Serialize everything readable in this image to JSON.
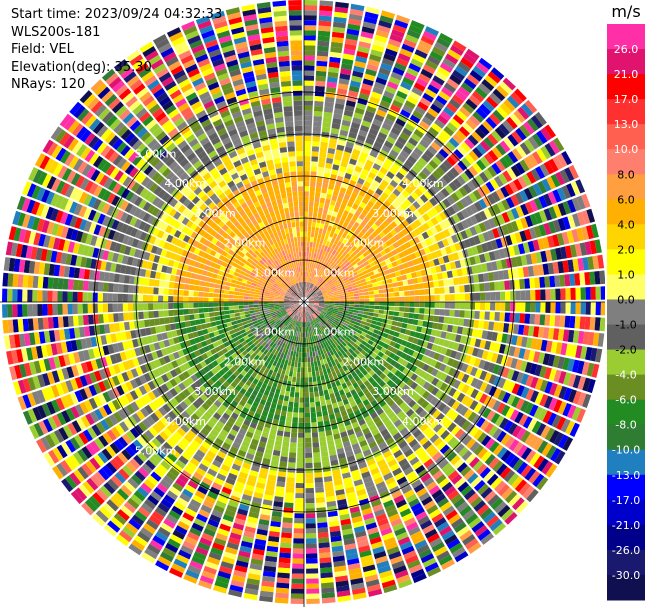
{
  "info": {
    "start_time": "Start time: 2023/09/24 04:32:33",
    "instrument": "WLS200s-181",
    "field": "Field: VEL",
    "elevation": "Elevation(deg): 35.30",
    "nrays": "NRays: 120"
  },
  "colorbar": {
    "unit": "m/s",
    "ticks": [
      "26.0",
      "21.0",
      "17.0",
      "13.0",
      "10.0",
      "8.0",
      "6.0",
      "4.0",
      "2.0",
      "1.0",
      "0.0",
      "-1.0",
      "-2.0",
      "-4.0",
      "-6.0",
      "-8.0",
      "-10.0",
      "-13.0",
      "-17.0",
      "-21.0",
      "-26.0",
      "-30.0"
    ],
    "colors": [
      "#ff2fa8",
      "#e0146e",
      "#ff0000",
      "#ff3030",
      "#ff6050",
      "#ff7f6f",
      "#ff9f40",
      "#ffb000",
      "#ffd500",
      "#ffff00",
      "#ffff66",
      "#7f7f7f",
      "#606060",
      "#9acd32",
      "#6b8e23",
      "#228b22",
      "#2e7d32",
      "#1f7fbf",
      "#0000ff",
      "#0000cd",
      "#00008b",
      "#191970",
      "#101050"
    ]
  },
  "range_rings": {
    "upper_left": [
      "5.00km",
      "4.00km",
      "3.00km",
      "2.00km",
      "1.00km"
    ],
    "upper_right": [
      "4.00km",
      "3.00km",
      "2.00km",
      "1.00km"
    ],
    "lower_left": [
      "1.00km",
      "2.00km",
      "3.00km",
      "4.00km",
      "5.00km"
    ],
    "lower_right": [
      "1.00km",
      "2.00km",
      "3.00km",
      "4.00km"
    ]
  },
  "colors": {
    "grid_line": "#000000",
    "label": "#ffffff"
  }
}
